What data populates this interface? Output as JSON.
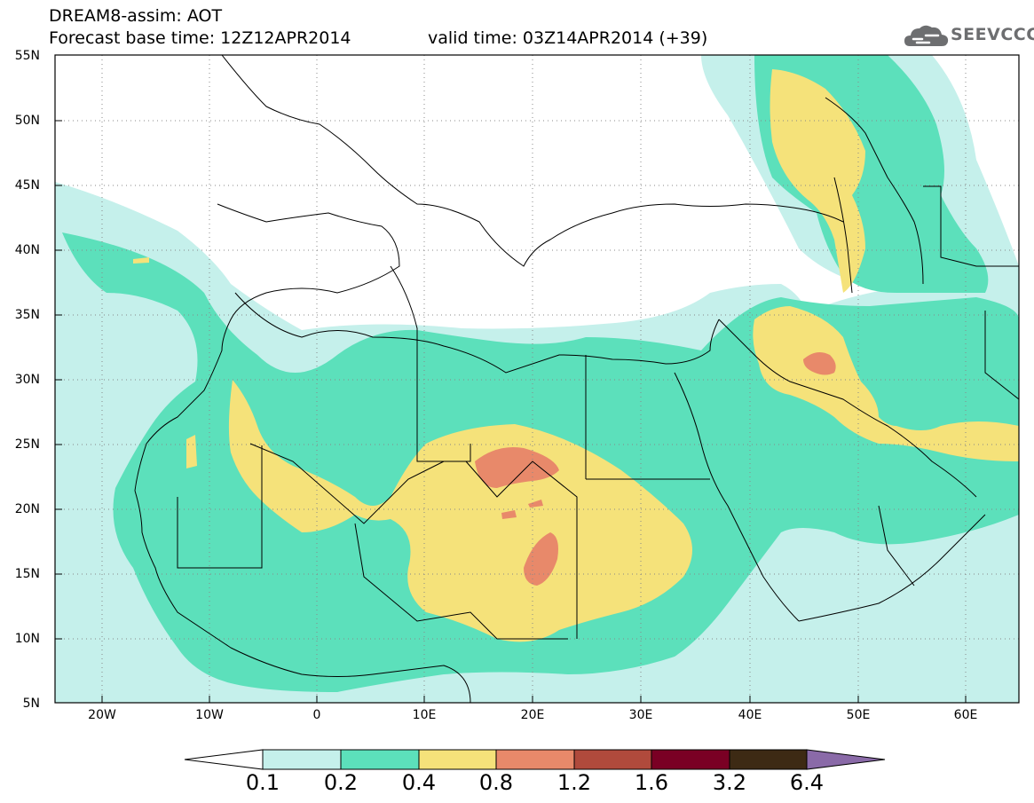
{
  "header": {
    "title_line1": "DREAM8-assim: AOT",
    "title_line2": "Forecast base time: 12Z12APR2014",
    "title_line2b": "valid time: 03Z14APR2014 (+39)",
    "logo_text": "SEEVCCC"
  },
  "axes": {
    "lat_labels": [
      "55N",
      "50N",
      "45N",
      "40N",
      "35N",
      "30N",
      "25N",
      "20N",
      "15N",
      "10N",
      "5N"
    ],
    "lon_labels": [
      "20W",
      "10W",
      "0",
      "10E",
      "20E",
      "30E",
      "40E",
      "50E",
      "60E"
    ]
  },
  "colorbar": {
    "labels": [
      "0.1",
      "0.2",
      "0.4",
      "0.8",
      "1.2",
      "1.6",
      "3.2",
      "6.4"
    ],
    "colors": [
      "#ffffff",
      "#c5f0eb",
      "#5ce0bb",
      "#f5e27a",
      "#e8896a",
      "#b04a3c",
      "#7a0024",
      "#3d2a14",
      "#8a6aa8"
    ]
  },
  "colors": {
    "c01": "#c5f0eb",
    "c02": "#5ce0bb",
    "c04": "#f5e27a",
    "c08": "#e8896a"
  }
}
